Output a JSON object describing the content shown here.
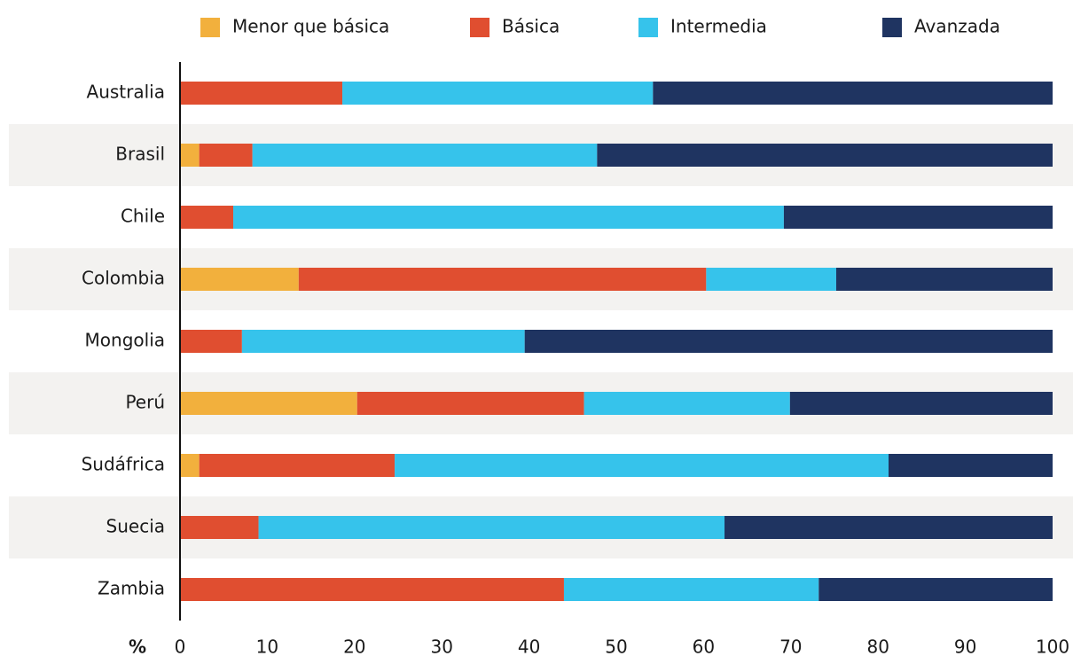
{
  "chart_data": {
    "type": "stacked_bar_horizontal",
    "categories": [
      "Australia",
      "Brasil",
      "Chile",
      "Colombia",
      "Mongolia",
      "Perú",
      "Sudáfrica",
      "Suecia",
      "Zambia"
    ],
    "series": [
      {
        "name": "Menor que básica",
        "color": "#f2b03d",
        "values": [
          0,
          2.2,
          0,
          13.6,
          0,
          20.3,
          2.2,
          0,
          0
        ]
      },
      {
        "name": "Básica",
        "color": "#e04e30",
        "values": [
          18.6,
          6.1,
          6.1,
          46.7,
          7.1,
          26.0,
          22.4,
          9.0,
          44.0
        ]
      },
      {
        "name": "Intermedia",
        "color": "#36c3eb",
        "values": [
          35.6,
          39.5,
          63.1,
          14.9,
          32.4,
          23.6,
          56.6,
          53.4,
          29.2
        ]
      },
      {
        "name": "Avanzada",
        "color": "#1f3461",
        "values": [
          45.8,
          52.2,
          30.8,
          24.8,
          60.5,
          30.1,
          18.8,
          37.6,
          26.8
        ]
      }
    ],
    "x_label": "%",
    "xlim": [
      0,
      100
    ],
    "xticks": [
      0,
      10,
      20,
      30,
      40,
      50,
      60,
      70,
      80,
      90,
      100
    ],
    "legend": "top"
  }
}
